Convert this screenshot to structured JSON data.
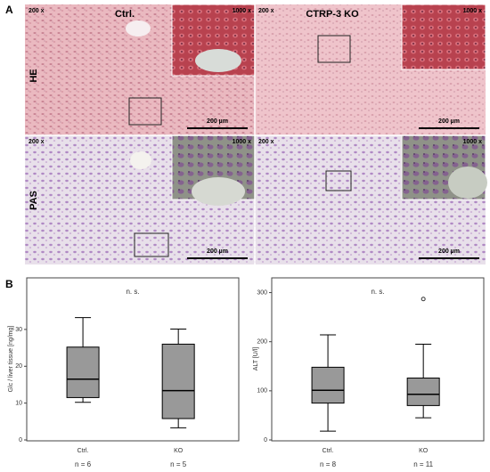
{
  "panel_a": {
    "label": "A",
    "columns": [
      "Ctrl.",
      "CTRP-3 KO"
    ],
    "rows": [
      "HE",
      "PAS"
    ],
    "magnification_low": "200 x",
    "magnification_high": "1000 x",
    "scale_bar": "200 µm"
  },
  "panel_b": {
    "label": "B"
  },
  "chart_data": [
    {
      "type": "box",
      "y_label": "Glc / liver tissue [ng/mg]",
      "annotation": "n. s.",
      "categories": [
        "Ctrl.",
        "KO"
      ],
      "n_labels": [
        "n = 6",
        "n = 5"
      ],
      "min": [
        10.2,
        3.3
      ],
      "q1": [
        11.5,
        5.8
      ],
      "median": [
        16.5,
        13.4
      ],
      "q3": [
        25.2,
        26
      ],
      "max": [
        33.2,
        30.1
      ],
      "outliers": [
        [],
        []
      ],
      "color": "#999999",
      "ylim": [
        0,
        44
      ],
      "yticks": [
        0,
        10,
        20,
        30
      ]
    },
    {
      "type": "box",
      "y_label": "ALT [U/l]",
      "annotation": "n. s.",
      "categories": [
        "Ctrl.",
        "KO"
      ],
      "n_labels": [
        "n = 8",
        "n = 11"
      ],
      "min": [
        18,
        45
      ],
      "q1": [
        75,
        70
      ],
      "median": [
        101,
        93
      ],
      "q3": [
        148,
        126
      ],
      "max": [
        214,
        195
      ],
      "outliers": [
        [],
        [
          287
        ]
      ],
      "color": "#999999",
      "ylim": [
        0,
        330
      ],
      "yticks": [
        0,
        100,
        200,
        300
      ]
    }
  ]
}
